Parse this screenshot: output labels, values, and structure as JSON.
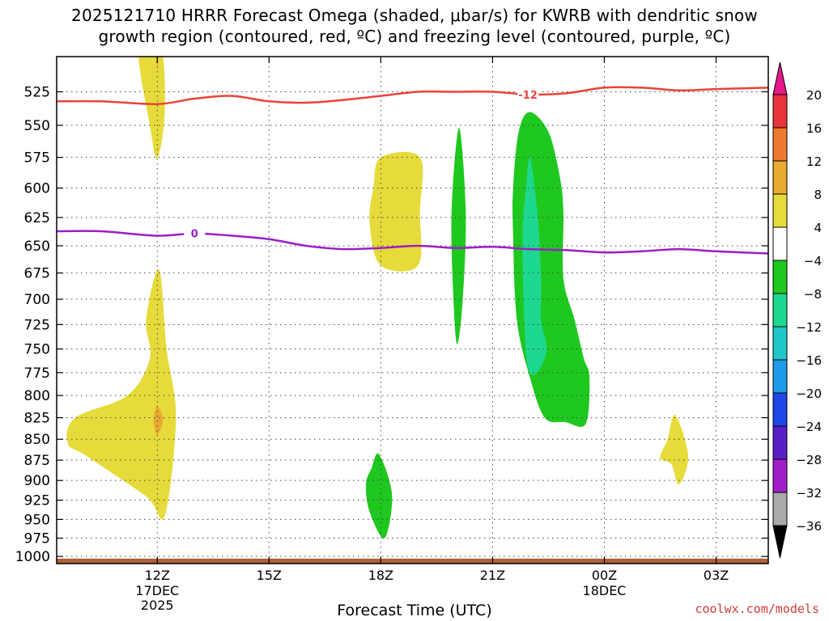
{
  "chart_data": {
    "type": "contour",
    "title_line1": "2025121710 HRRR Forecast Omega (shaded, μbar/s) for KWRB with dendritic snow",
    "title_line2": "growth region (contoured, red, ºC) and freezing level (contoured, purple, ºC)",
    "xlabel": "Forecast Time (UTC)",
    "ylabel_levels": [
      525,
      550,
      575,
      600,
      625,
      650,
      675,
      700,
      725,
      750,
      775,
      800,
      825,
      850,
      875,
      900,
      925,
      950,
      975,
      1000
    ],
    "ylim_hpa": [
      500,
      1010
    ],
    "xlim_hours": [
      9.3,
      28.4
    ],
    "x_ticks": [
      {
        "hour": 12,
        "label": "12Z",
        "sub1": "17DEC",
        "sub2": "2025"
      },
      {
        "hour": 15,
        "label": "15Z",
        "sub1": "",
        "sub2": ""
      },
      {
        "hour": 18,
        "label": "18Z",
        "sub1": "",
        "sub2": ""
      },
      {
        "hour": 21,
        "label": "21Z",
        "sub1": "",
        "sub2": ""
      },
      {
        "hour": 24,
        "label": "00Z",
        "sub1": "18DEC",
        "sub2": ""
      },
      {
        "hour": 27,
        "label": "03Z",
        "sub1": "",
        "sub2": ""
      }
    ],
    "colorbar": {
      "labels": [
        "20",
        "16",
        "12",
        "8",
        "4",
        "−4",
        "−8",
        "−12",
        "−16",
        "−20",
        "−24",
        "−28",
        "−32",
        "−36"
      ],
      "colors": [
        "#e8343a",
        "#ee7a30",
        "#e8aa30",
        "#e6db3a",
        "#ffffff",
        "#1ec81e",
        "#1ed890",
        "#1ec8c8",
        "#1e9be8",
        "#1e46e8",
        "#5a1ec8",
        "#a01ec8",
        "#aaaaaa"
      ],
      "top_arrow": "#e8178a",
      "bottom_arrow": "#000000"
    },
    "omega_regions": [
      {
        "label": "+4 to +8",
        "color": "#e6db3a",
        "points": [
          [
            11.5,
            495
          ],
          [
            12.1,
            495
          ],
          [
            12.2,
            540
          ],
          [
            12.0,
            576
          ],
          [
            11.8,
            550
          ]
        ]
      },
      {
        "label": "+8 to +12",
        "color": "#e8aa30",
        "points": [
          [
            11.97,
            500
          ],
          [
            12.03,
            500
          ],
          [
            12.01,
            508
          ]
        ]
      },
      {
        "label": "+4 to +8",
        "color": "#e6db3a",
        "points": [
          [
            12.05,
            672
          ],
          [
            12.25,
            750
          ],
          [
            12.5,
            825
          ],
          [
            12.2,
            945
          ],
          [
            11.7,
            920
          ],
          [
            10.1,
            870
          ],
          [
            9.6,
            855
          ],
          [
            9.8,
            825
          ],
          [
            11.2,
            800
          ],
          [
            11.8,
            760
          ],
          [
            11.7,
            720
          ]
        ]
      },
      {
        "label": "+8 to +12",
        "color": "#e8aa30",
        "points": [
          [
            12.0,
            812
          ],
          [
            12.15,
            827
          ],
          [
            12.0,
            845
          ],
          [
            11.9,
            828
          ]
        ]
      },
      {
        "label": "+4 to +8",
        "color": "#e6db3a",
        "points": [
          [
            18.0,
            575
          ],
          [
            19.05,
            575
          ],
          [
            19.05,
            620
          ],
          [
            19.0,
            668
          ],
          [
            18.0,
            668
          ],
          [
            17.7,
            630
          ],
          [
            17.8,
            600
          ]
        ]
      },
      {
        "label": "+4 to +8",
        "color": "#e6db3a",
        "points": [
          [
            25.9,
            822
          ],
          [
            26.25,
            870
          ],
          [
            26.0,
            905
          ],
          [
            25.8,
            880
          ],
          [
            25.5,
            872
          ],
          [
            25.7,
            850
          ]
        ]
      },
      {
        "label": "-4 to -8",
        "color": "#1ec81e",
        "points": [
          [
            20.1,
            552
          ],
          [
            20.28,
            620
          ],
          [
            20.2,
            700
          ],
          [
            20.05,
            745
          ],
          [
            19.95,
            700
          ],
          [
            19.9,
            620
          ]
        ]
      },
      {
        "label": "-4 to -8",
        "color": "#1ec81e",
        "points": [
          [
            17.95,
            868
          ],
          [
            18.3,
            918
          ],
          [
            18.1,
            975
          ],
          [
            17.7,
            940
          ],
          [
            17.6,
            905
          ],
          [
            17.75,
            885
          ]
        ]
      },
      {
        "label": "-4 to -8",
        "color": "#1ec81e",
        "points": [
          [
            22.0,
            540
          ],
          [
            22.5,
            555
          ],
          [
            22.8,
            590
          ],
          [
            22.9,
            620
          ],
          [
            22.9,
            680
          ],
          [
            23.2,
            720
          ],
          [
            23.45,
            760
          ],
          [
            23.6,
            780
          ],
          [
            23.5,
            832
          ],
          [
            22.95,
            830
          ],
          [
            22.4,
            825
          ],
          [
            22.0,
            780
          ],
          [
            21.65,
            720
          ],
          [
            21.55,
            640
          ],
          [
            21.55,
            600
          ],
          [
            21.7,
            555
          ]
        ]
      },
      {
        "label": "-8 to -12",
        "color": "#1ed890",
        "points": [
          [
            22.0,
            575
          ],
          [
            22.2,
            620
          ],
          [
            22.3,
            680
          ],
          [
            22.3,
            720
          ],
          [
            22.45,
            750
          ],
          [
            22.2,
            775
          ],
          [
            21.95,
            770
          ],
          [
            21.85,
            720
          ],
          [
            21.8,
            640
          ],
          [
            21.9,
            600
          ]
        ]
      }
    ],
    "contours": [
      {
        "name": "dendritic snow growth (-12 ºC)",
        "color": "#e8433a",
        "label": "-12",
        "label_hour": 21.95,
        "points": [
          [
            9.3,
            532
          ],
          [
            10.5,
            532
          ],
          [
            12.0,
            534
          ],
          [
            13.0,
            530
          ],
          [
            14.0,
            528
          ],
          [
            15.0,
            532
          ],
          [
            16.0,
            533
          ],
          [
            17.0,
            531
          ],
          [
            18.0,
            528
          ],
          [
            19.0,
            525
          ],
          [
            20.0,
            525
          ],
          [
            21.0,
            525
          ],
          [
            22.0,
            527
          ],
          [
            23.0,
            526
          ],
          [
            24.0,
            522
          ],
          [
            25.0,
            522
          ],
          [
            26.0,
            524
          ],
          [
            27.0,
            523
          ],
          [
            28.4,
            522
          ]
        ]
      },
      {
        "name": "freezing level (0 ºC)",
        "color": "#9b1ec8",
        "label": "0",
        "label_hour": 13.0,
        "points": [
          [
            9.3,
            637
          ],
          [
            10.5,
            637
          ],
          [
            12.0,
            641
          ],
          [
            13.0,
            639
          ],
          [
            14.0,
            641
          ],
          [
            15.0,
            644
          ],
          [
            16.0,
            650
          ],
          [
            17.0,
            653
          ],
          [
            18.0,
            652
          ],
          [
            19.0,
            650
          ],
          [
            20.0,
            652
          ],
          [
            21.0,
            651
          ],
          [
            22.0,
            653
          ],
          [
            23.0,
            654
          ],
          [
            24.0,
            656
          ],
          [
            25.0,
            655
          ],
          [
            26.0,
            653
          ],
          [
            27.0,
            655
          ],
          [
            28.4,
            657
          ]
        ]
      }
    ],
    "ground_color": "#b0603a"
  },
  "credit": "coolwx.com/models"
}
